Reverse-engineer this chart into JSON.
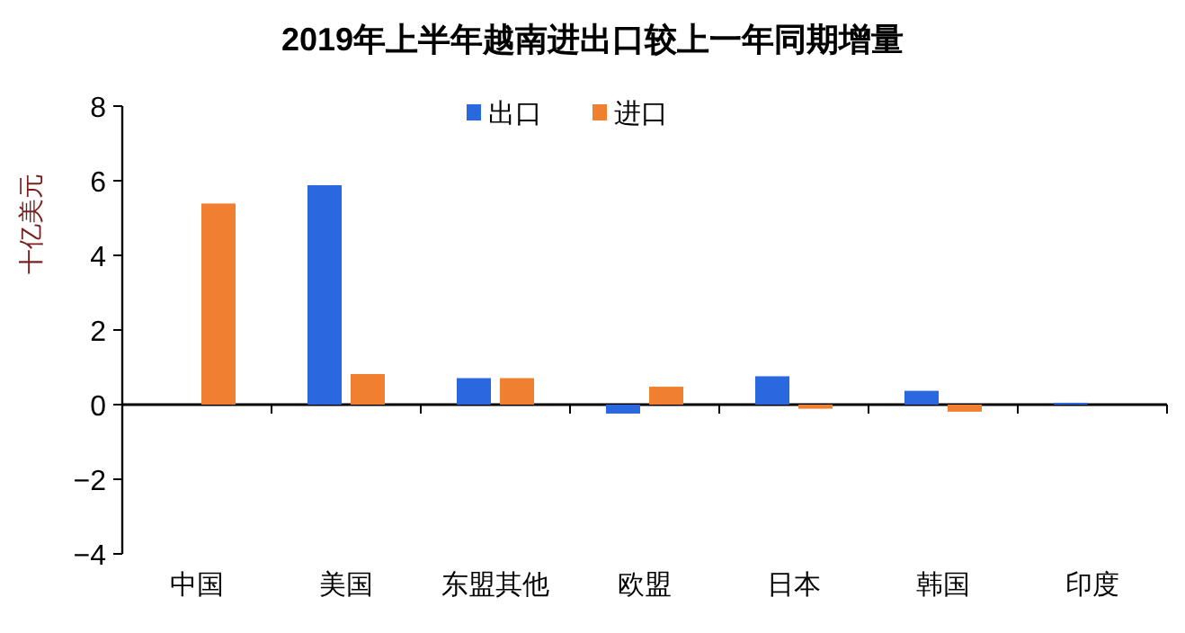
{
  "chart_data": {
    "type": "bar",
    "title": "2019年上半年越南进出口较上一年同期增量",
    "ylabel": "十亿美元",
    "categories": [
      "中国",
      "美国",
      "东盟其他",
      "欧盟",
      "日本",
      "韩国",
      "印度"
    ],
    "series": [
      {
        "name": "出口",
        "color": "#2a68e0",
        "values": [
          null,
          5.88,
          0.71,
          -0.24,
          0.76,
          0.37,
          0.05
        ]
      },
      {
        "name": "进口",
        "color": "#f08030",
        "values": [
          5.39,
          0.82,
          0.71,
          0.48,
          -0.11,
          -0.19,
          null
        ]
      }
    ],
    "ylim": [
      -4,
      8
    ],
    "yticks": [
      {
        "value": -4,
        "label": "−4"
      },
      {
        "value": -2,
        "label": "−2"
      },
      0,
      2,
      4,
      6,
      8
    ],
    "legend": "top"
  }
}
